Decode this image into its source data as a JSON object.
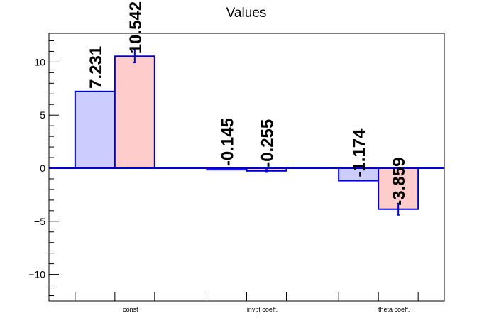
{
  "chart_data": {
    "type": "bar",
    "title": "Values",
    "xlabel": "",
    "ylabel": "",
    "categories": [
      "const",
      "invpt coeff.",
      "theta coeff."
    ],
    "ylim": [
      -12.5,
      12.7
    ],
    "yticks": [
      -10,
      -5,
      0,
      5,
      10
    ],
    "ytick_labels": [
      "−10",
      "−5",
      "0",
      "5",
      "10"
    ],
    "grid": false,
    "legend": "none",
    "series": [
      {
        "values": [
          7.231,
          -0.145,
          -1.174
        ],
        "labels": [
          "7.231",
          "-0.145",
          "-1.174"
        ],
        "errors": [
          0,
          0,
          0
        ],
        "fill": "#ccccff",
        "stroke": "#0000cc"
      },
      {
        "values": [
          10.542,
          -0.255,
          -3.859
        ],
        "labels": [
          "10.542",
          "-0.255",
          "-3.859"
        ],
        "errors": [
          0.6,
          0.12,
          0.55
        ],
        "fill": "#ffcccc",
        "stroke": "#0000cc"
      }
    ]
  }
}
